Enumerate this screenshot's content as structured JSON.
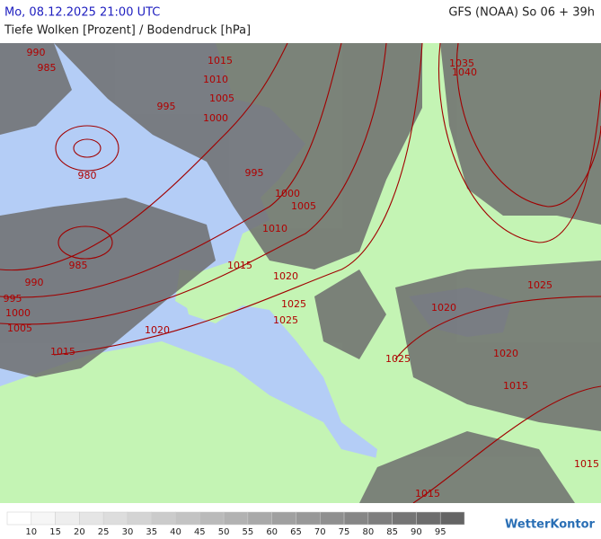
{
  "header": {
    "date": "Mo, 08.12.2025 21:00 UTC",
    "model": "GFS (NOAA) So 06 + 39h",
    "subtitle": "Tiefe Wolken [Prozent] / Bodendruck [hPa]"
  },
  "isobar_labels": [
    990,
    985,
    1015,
    1010,
    1005,
    995,
    1000,
    980,
    995,
    1000,
    1005,
    1010,
    985,
    1015,
    990,
    1020,
    995,
    1000,
    1025,
    1005,
    1025,
    1020,
    1015,
    1035,
    1040,
    1025,
    1020,
    1020,
    1025,
    1015,
    1015,
    1015
  ],
  "legend": {
    "ticks": [
      10,
      15,
      20,
      25,
      30,
      35,
      40,
      45,
      50,
      55,
      60,
      65,
      70,
      75,
      80,
      85,
      90,
      95
    ]
  },
  "brand": "WetterKontor"
}
